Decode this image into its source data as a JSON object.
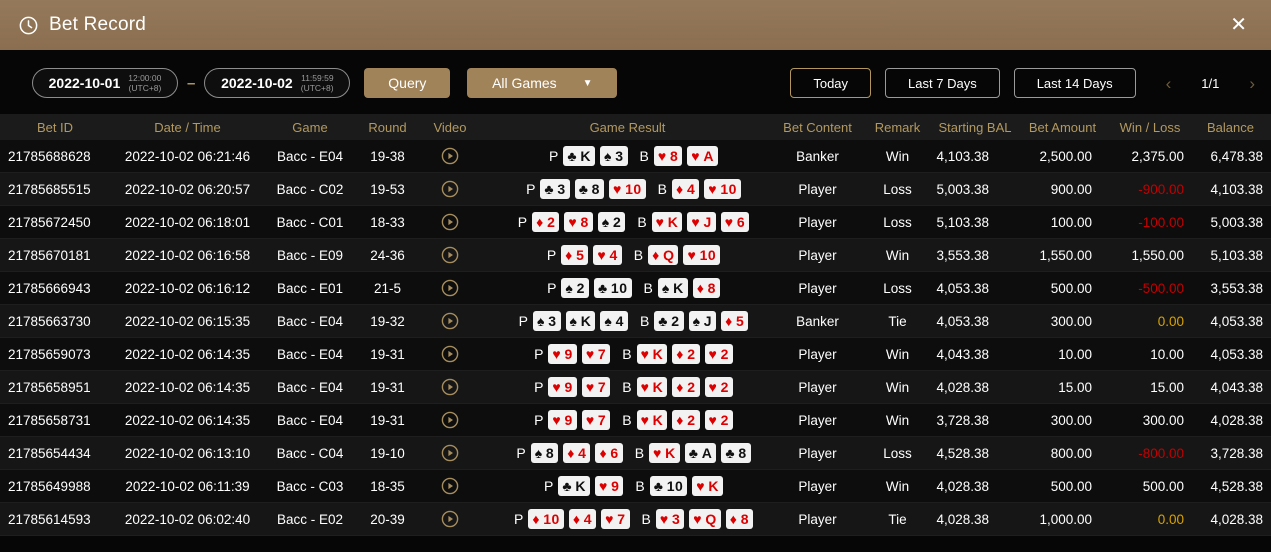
{
  "header": {
    "title": "Bet Record",
    "close_label": "✕"
  },
  "colors": {
    "titlebar_tan": "#8d7455",
    "accent_gold": "#b1975f",
    "button_tan": "#a1835a",
    "header_text_gold": "#b3995f",
    "loss_red": "#c40000",
    "tie_gold": "#d9a300",
    "card_red": "#dd0000"
  },
  "filters": {
    "date_from": {
      "date": "2022-10-01",
      "time": "12:00:00",
      "tz": "(UTC+8)"
    },
    "date_to": {
      "date": "2022-10-02",
      "time": "11:59:59",
      "tz": "(UTC+8)"
    },
    "separator": "–",
    "query_label": "Query",
    "games_dropdown": {
      "selected": "All Games",
      "caret": "▼"
    },
    "quick_ranges": [
      {
        "label": "Today",
        "active": true
      },
      {
        "label": "Last 7 Days",
        "active": false
      },
      {
        "label": "Last 14 Days",
        "active": false
      }
    ],
    "pagination": {
      "prev": "‹",
      "current": "1/1",
      "next": "›"
    }
  },
  "table": {
    "columns": [
      "Bet ID",
      "Date / Time",
      "Game",
      "Round",
      "Video",
      "Game Result",
      "Bet Content",
      "Remark",
      "Starting BAL",
      "Bet Amount",
      "Win / Loss",
      "Balance"
    ],
    "player_label": "P",
    "banker_label": "B",
    "video_icon": "play-circle",
    "rows": [
      {
        "bet_id": "21785688628",
        "datetime": "2022-10-02 06:21:46",
        "game": "Bacc - E04",
        "round": "19-38",
        "player_cards": [
          {
            "suit": "♣",
            "rank": "K",
            "color": "black"
          },
          {
            "suit": "♠",
            "rank": "3",
            "color": "black"
          }
        ],
        "banker_cards": [
          {
            "suit": "♥",
            "rank": "8",
            "color": "red"
          },
          {
            "suit": "♥",
            "rank": "A",
            "color": "red"
          }
        ],
        "bet_content": "Banker",
        "remark": "Win",
        "starting_bal": "4,103.38",
        "bet_amount": "2,500.00",
        "win_loss": "2,375.00",
        "win_loss_type": "win",
        "balance": "6,478.38"
      },
      {
        "bet_id": "21785685515",
        "datetime": "2022-10-02 06:20:57",
        "game": "Bacc - C02",
        "round": "19-53",
        "player_cards": [
          {
            "suit": "♣",
            "rank": "3",
            "color": "black"
          },
          {
            "suit": "♣",
            "rank": "8",
            "color": "black"
          },
          {
            "suit": "♥",
            "rank": "10",
            "color": "red"
          }
        ],
        "banker_cards": [
          {
            "suit": "♦",
            "rank": "4",
            "color": "red"
          },
          {
            "suit": "♥",
            "rank": "10",
            "color": "red"
          }
        ],
        "bet_content": "Player",
        "remark": "Loss",
        "starting_bal": "5,003.38",
        "bet_amount": "900.00",
        "win_loss": "-900.00",
        "win_loss_type": "loss",
        "balance": "4,103.38"
      },
      {
        "bet_id": "21785672450",
        "datetime": "2022-10-02 06:18:01",
        "game": "Bacc - C01",
        "round": "18-33",
        "player_cards": [
          {
            "suit": "♦",
            "rank": "2",
            "color": "red"
          },
          {
            "suit": "♥",
            "rank": "8",
            "color": "red"
          },
          {
            "suit": "♠",
            "rank": "2",
            "color": "black"
          }
        ],
        "banker_cards": [
          {
            "suit": "♥",
            "rank": "K",
            "color": "red"
          },
          {
            "suit": "♥",
            "rank": "J",
            "color": "red"
          },
          {
            "suit": "♥",
            "rank": "6",
            "color": "red"
          }
        ],
        "bet_content": "Player",
        "remark": "Loss",
        "starting_bal": "5,103.38",
        "bet_amount": "100.00",
        "win_loss": "-100.00",
        "win_loss_type": "loss",
        "balance": "5,003.38"
      },
      {
        "bet_id": "21785670181",
        "datetime": "2022-10-02 06:16:58",
        "game": "Bacc - E09",
        "round": "24-36",
        "player_cards": [
          {
            "suit": "♦",
            "rank": "5",
            "color": "red"
          },
          {
            "suit": "♥",
            "rank": "4",
            "color": "red"
          }
        ],
        "banker_cards": [
          {
            "suit": "♦",
            "rank": "Q",
            "color": "red"
          },
          {
            "suit": "♥",
            "rank": "10",
            "color": "red"
          }
        ],
        "bet_content": "Player",
        "remark": "Win",
        "starting_bal": "3,553.38",
        "bet_amount": "1,550.00",
        "win_loss": "1,550.00",
        "win_loss_type": "win",
        "balance": "5,103.38"
      },
      {
        "bet_id": "21785666943",
        "datetime": "2022-10-02 06:16:12",
        "game": "Bacc - E01",
        "round": "21-5",
        "player_cards": [
          {
            "suit": "♠",
            "rank": "2",
            "color": "black"
          },
          {
            "suit": "♣",
            "rank": "10",
            "color": "black"
          }
        ],
        "banker_cards": [
          {
            "suit": "♠",
            "rank": "K",
            "color": "black"
          },
          {
            "suit": "♦",
            "rank": "8",
            "color": "red"
          }
        ],
        "bet_content": "Player",
        "remark": "Loss",
        "starting_bal": "4,053.38",
        "bet_amount": "500.00",
        "win_loss": "-500.00",
        "win_loss_type": "loss",
        "balance": "3,553.38"
      },
      {
        "bet_id": "21785663730",
        "datetime": "2022-10-02 06:15:35",
        "game": "Bacc - E04",
        "round": "19-32",
        "player_cards": [
          {
            "suit": "♠",
            "rank": "3",
            "color": "black"
          },
          {
            "suit": "♠",
            "rank": "K",
            "color": "black"
          },
          {
            "suit": "♠",
            "rank": "4",
            "color": "black"
          }
        ],
        "banker_cards": [
          {
            "suit": "♣",
            "rank": "2",
            "color": "black"
          },
          {
            "suit": "♠",
            "rank": "J",
            "color": "black"
          },
          {
            "suit": "♦",
            "rank": "5",
            "color": "red"
          }
        ],
        "bet_content": "Banker",
        "remark": "Tie",
        "starting_bal": "4,053.38",
        "bet_amount": "300.00",
        "win_loss": "0.00",
        "win_loss_type": "tie",
        "balance": "4,053.38"
      },
      {
        "bet_id": "21785659073",
        "datetime": "2022-10-02 06:14:35",
        "game": "Bacc - E04",
        "round": "19-31",
        "player_cards": [
          {
            "suit": "♥",
            "rank": "9",
            "color": "red"
          },
          {
            "suit": "♥",
            "rank": "7",
            "color": "red"
          }
        ],
        "banker_cards": [
          {
            "suit": "♥",
            "rank": "K",
            "color": "red"
          },
          {
            "suit": "♦",
            "rank": "2",
            "color": "red"
          },
          {
            "suit": "♥",
            "rank": "2",
            "color": "red"
          }
        ],
        "bet_content": "Player",
        "remark": "Win",
        "starting_bal": "4,043.38",
        "bet_amount": "10.00",
        "win_loss": "10.00",
        "win_loss_type": "win",
        "balance": "4,053.38"
      },
      {
        "bet_id": "21785658951",
        "datetime": "2022-10-02 06:14:35",
        "game": "Bacc - E04",
        "round": "19-31",
        "player_cards": [
          {
            "suit": "♥",
            "rank": "9",
            "color": "red"
          },
          {
            "suit": "♥",
            "rank": "7",
            "color": "red"
          }
        ],
        "banker_cards": [
          {
            "suit": "♥",
            "rank": "K",
            "color": "red"
          },
          {
            "suit": "♦",
            "rank": "2",
            "color": "red"
          },
          {
            "suit": "♥",
            "rank": "2",
            "color": "red"
          }
        ],
        "bet_content": "Player",
        "remark": "Win",
        "starting_bal": "4,028.38",
        "bet_amount": "15.00",
        "win_loss": "15.00",
        "win_loss_type": "win",
        "balance": "4,043.38"
      },
      {
        "bet_id": "21785658731",
        "datetime": "2022-10-02 06:14:35",
        "game": "Bacc - E04",
        "round": "19-31",
        "player_cards": [
          {
            "suit": "♥",
            "rank": "9",
            "color": "red"
          },
          {
            "suit": "♥",
            "rank": "7",
            "color": "red"
          }
        ],
        "banker_cards": [
          {
            "suit": "♥",
            "rank": "K",
            "color": "red"
          },
          {
            "suit": "♦",
            "rank": "2",
            "color": "red"
          },
          {
            "suit": "♥",
            "rank": "2",
            "color": "red"
          }
        ],
        "bet_content": "Player",
        "remark": "Win",
        "starting_bal": "3,728.38",
        "bet_amount": "300.00",
        "win_loss": "300.00",
        "win_loss_type": "win",
        "balance": "4,028.38"
      },
      {
        "bet_id": "21785654434",
        "datetime": "2022-10-02 06:13:10",
        "game": "Bacc - C04",
        "round": "19-10",
        "player_cards": [
          {
            "suit": "♠",
            "rank": "8",
            "color": "black"
          },
          {
            "suit": "♦",
            "rank": "4",
            "color": "red"
          },
          {
            "suit": "♦",
            "rank": "6",
            "color": "red"
          }
        ],
        "banker_cards": [
          {
            "suit": "♥",
            "rank": "K",
            "color": "red"
          },
          {
            "suit": "♣",
            "rank": "A",
            "color": "black"
          },
          {
            "suit": "♣",
            "rank": "8",
            "color": "black"
          }
        ],
        "bet_content": "Player",
        "remark": "Loss",
        "starting_bal": "4,528.38",
        "bet_amount": "800.00",
        "win_loss": "-800.00",
        "win_loss_type": "loss",
        "balance": "3,728.38"
      },
      {
        "bet_id": "21785649988",
        "datetime": "2022-10-02 06:11:39",
        "game": "Bacc - C03",
        "round": "18-35",
        "player_cards": [
          {
            "suit": "♣",
            "rank": "K",
            "color": "black"
          },
          {
            "suit": "♥",
            "rank": "9",
            "color": "red"
          }
        ],
        "banker_cards": [
          {
            "suit": "♣",
            "rank": "10",
            "color": "black"
          },
          {
            "suit": "♥",
            "rank": "K",
            "color": "red"
          }
        ],
        "bet_content": "Player",
        "remark": "Win",
        "starting_bal": "4,028.38",
        "bet_amount": "500.00",
        "win_loss": "500.00",
        "win_loss_type": "win",
        "balance": "4,528.38"
      },
      {
        "bet_id": "21785614593",
        "datetime": "2022-10-02 06:02:40",
        "game": "Bacc - E02",
        "round": "20-39",
        "player_cards": [
          {
            "suit": "♦",
            "rank": "10",
            "color": "red"
          },
          {
            "suit": "♦",
            "rank": "4",
            "color": "red"
          },
          {
            "suit": "♥",
            "rank": "7",
            "color": "red"
          }
        ],
        "banker_cards": [
          {
            "suit": "♥",
            "rank": "3",
            "color": "red"
          },
          {
            "suit": "♥",
            "rank": "Q",
            "color": "red"
          },
          {
            "suit": "♦",
            "rank": "8",
            "color": "red"
          }
        ],
        "bet_content": "Player",
        "remark": "Tie",
        "starting_bal": "4,028.38",
        "bet_amount": "1,000.00",
        "win_loss": "0.00",
        "win_loss_type": "tie",
        "balance": "4,028.38"
      }
    ]
  }
}
